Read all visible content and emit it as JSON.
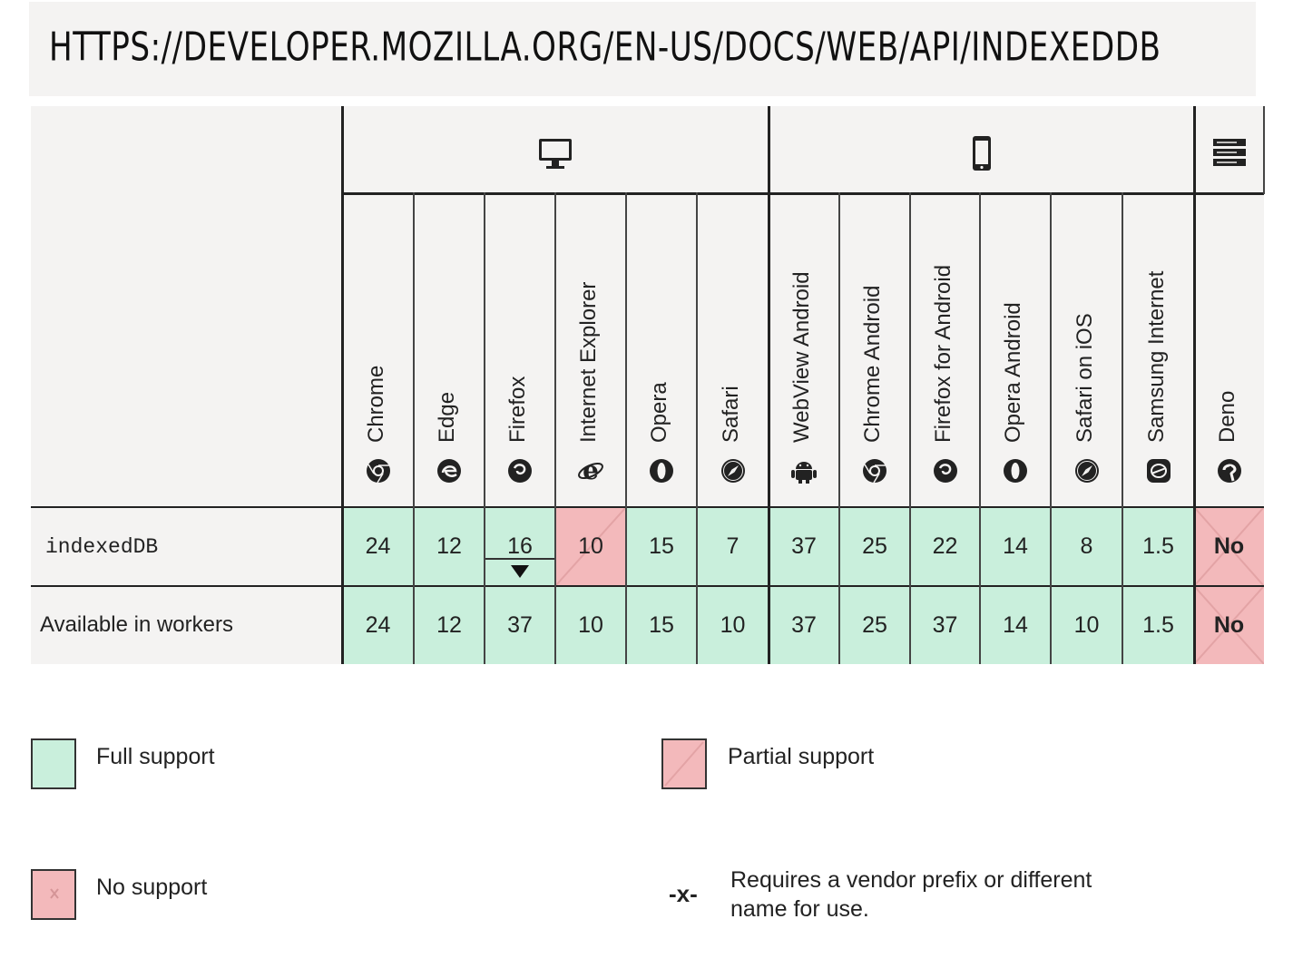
{
  "url": "HTTPS://DEVELOPER.MOZILLA.ORG/EN-US/DOCS/WEB/API/INDEXEDDB",
  "colors": {
    "full": "#c9efdc",
    "partial": "#f3b9bb",
    "none": "#f3b9bb",
    "header_bg": "#f4f3f2"
  },
  "groups": [
    {
      "name": "desktop",
      "icon": "desktop-icon"
    },
    {
      "name": "mobile",
      "icon": "mobile-icon"
    },
    {
      "name": "server",
      "icon": "server-icon"
    }
  ],
  "browsers": [
    {
      "label": "Chrome",
      "icon": "chrome-icon"
    },
    {
      "label": "Edge",
      "icon": "edge-icon"
    },
    {
      "label": "Firefox",
      "icon": "firefox-icon"
    },
    {
      "label": "Internet Explorer",
      "icon": "ie-icon"
    },
    {
      "label": "Opera",
      "icon": "opera-icon"
    },
    {
      "label": "Safari",
      "icon": "safari-icon"
    },
    {
      "label": "WebView Android",
      "icon": "android-icon"
    },
    {
      "label": "Chrome Android",
      "icon": "chrome-icon"
    },
    {
      "label": "Firefox for Android",
      "icon": "firefox-icon"
    },
    {
      "label": "Opera Android",
      "icon": "opera-icon"
    },
    {
      "label": "Safari on iOS",
      "icon": "safari-icon"
    },
    {
      "label": "Samsung Internet",
      "icon": "samsung-icon"
    },
    {
      "label": "Deno",
      "icon": "deno-icon"
    }
  ],
  "rows": [
    {
      "label": "indexedDB",
      "cells": [
        {
          "value": "24",
          "support": "full"
        },
        {
          "value": "12",
          "support": "full"
        },
        {
          "value": "16",
          "support": "full",
          "expand": true
        },
        {
          "value": "10",
          "support": "partial"
        },
        {
          "value": "15",
          "support": "full"
        },
        {
          "value": "7",
          "support": "full"
        },
        {
          "value": "37",
          "support": "full"
        },
        {
          "value": "25",
          "support": "full"
        },
        {
          "value": "22",
          "support": "full"
        },
        {
          "value": "14",
          "support": "full"
        },
        {
          "value": "8",
          "support": "full"
        },
        {
          "value": "1.5",
          "support": "full"
        },
        {
          "value": "No",
          "support": "none"
        }
      ]
    },
    {
      "label": "Available in workers",
      "cells": [
        {
          "value": "24",
          "support": "full"
        },
        {
          "value": "12",
          "support": "full"
        },
        {
          "value": "37",
          "support": "full"
        },
        {
          "value": "10",
          "support": "full"
        },
        {
          "value": "15",
          "support": "full"
        },
        {
          "value": "10",
          "support": "full"
        },
        {
          "value": "37",
          "support": "full"
        },
        {
          "value": "25",
          "support": "full"
        },
        {
          "value": "37",
          "support": "full"
        },
        {
          "value": "14",
          "support": "full"
        },
        {
          "value": "10",
          "support": "full"
        },
        {
          "value": "1.5",
          "support": "full"
        },
        {
          "value": "No",
          "support": "none"
        }
      ]
    }
  ],
  "legend": {
    "full": "Full support",
    "partial": "Partial support",
    "none": "No support",
    "prefix_symbol": "-x-",
    "prefix_line1": "Requires a vendor prefix or different",
    "prefix_line2": "name for use."
  }
}
